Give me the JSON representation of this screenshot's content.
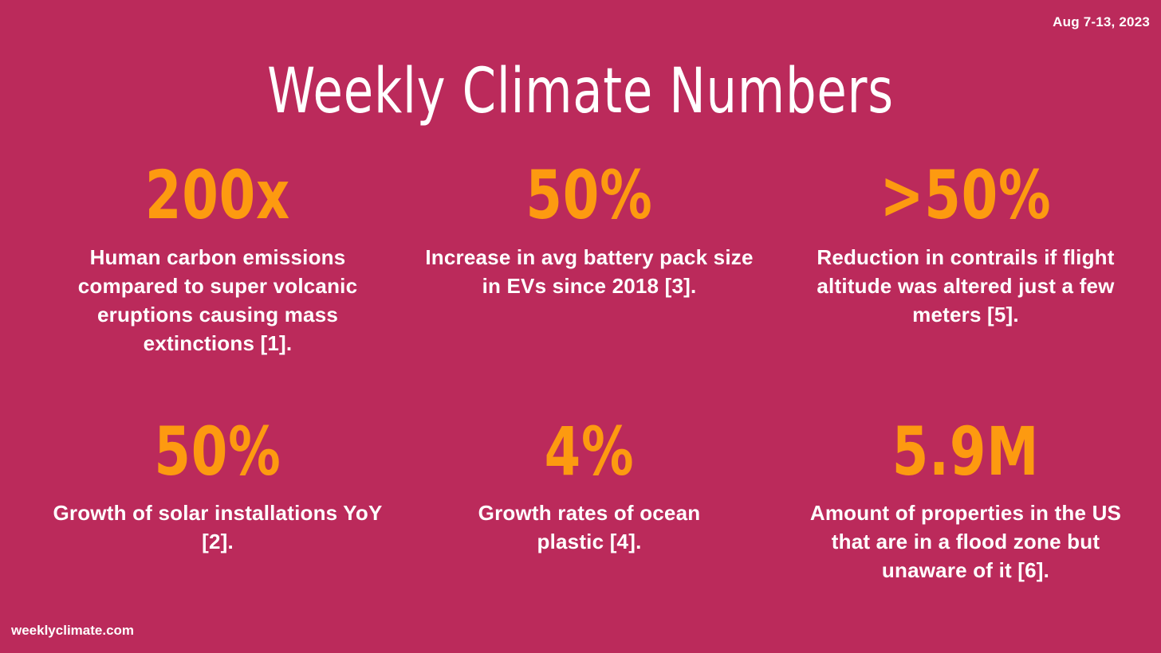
{
  "date": "Aug 7-13, 2023",
  "title": "Weekly Climate Numbers",
  "stats": [
    {
      "value": "200x",
      "description": "Human carbon emissions compared to super volcanic eruptions causing mass extinctions [1]."
    },
    {
      "value": "50%",
      "description": "Increase in avg battery pack size in EVs since 2018 [3]."
    },
    {
      "value": ">50%",
      "description": "Reduction in contrails if flight altitude was altered just a few meters [5]."
    },
    {
      "value": "50%",
      "description": "Growth of solar installations YoY [2]."
    },
    {
      "value": "4%",
      "description": "Growth rates of ocean plastic [4]."
    },
    {
      "value": "5.9M",
      "description": "Amount of properties in the US that are in a flood zone but unaware of it [6]."
    }
  ],
  "footer": {
    "site": "weeklyclimate.com"
  },
  "colors": {
    "background": "#bb2a5b",
    "accent": "#fd9a10",
    "text": "#ffffff"
  }
}
